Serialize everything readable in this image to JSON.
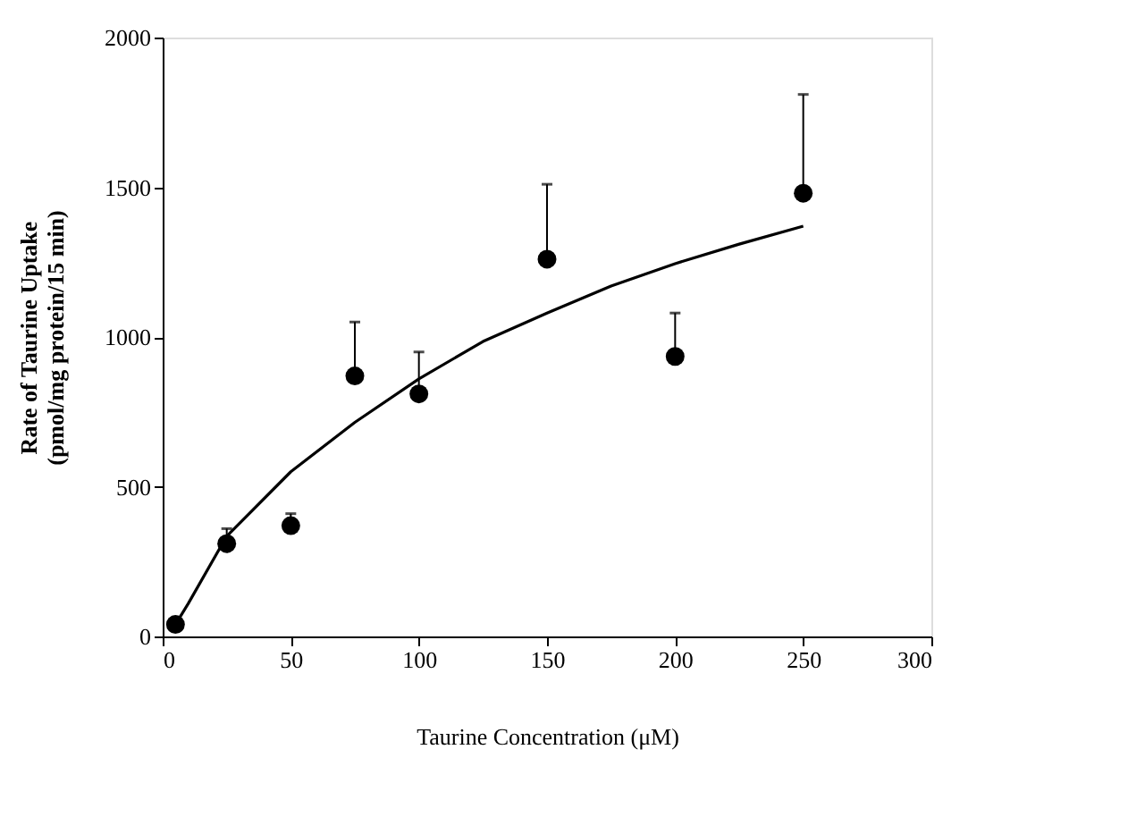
{
  "chart_data": {
    "type": "scatter",
    "xlabel": "Taurine Concentration (μM)",
    "ylabel": "Rate of Taurine Uptake\n(pmol/mg protein/15 min)",
    "xlim": [
      0,
      300
    ],
    "xticks": [
      0,
      50,
      100,
      150,
      200,
      250,
      300
    ],
    "ylim": [
      0,
      2000
    ],
    "yticks": [
      0,
      500,
      1000,
      1500,
      2000
    ],
    "grid": false,
    "series": [
      {
        "color": "#000000",
        "marker": "circle",
        "x": [
          5,
          25,
          50,
          75,
          100,
          150,
          200,
          250
        ],
        "values": [
          40,
          310,
          370,
          870,
          810,
          1260,
          935,
          1480
        ],
        "errors": [
          null,
          [
            310,
            360
          ],
          [
            370,
            410
          ],
          [
            870,
            1050
          ],
          [
            810,
            950
          ],
          [
            1260,
            1510
          ],
          [
            935,
            1080
          ],
          [
            1480,
            1810
          ]
        ]
      },
      {
        "type": "line",
        "color": "#000000",
        "line_style": "solid",
        "marker": "none",
        "x": [
          5,
          10,
          25,
          50,
          75,
          100,
          125,
          150,
          175,
          200,
          225,
          250
        ],
        "values": [
          40,
          110,
          335,
          550,
          715,
          860,
          985,
          1080,
          1170,
          1245,
          1310,
          1370
        ]
      }
    ]
  }
}
